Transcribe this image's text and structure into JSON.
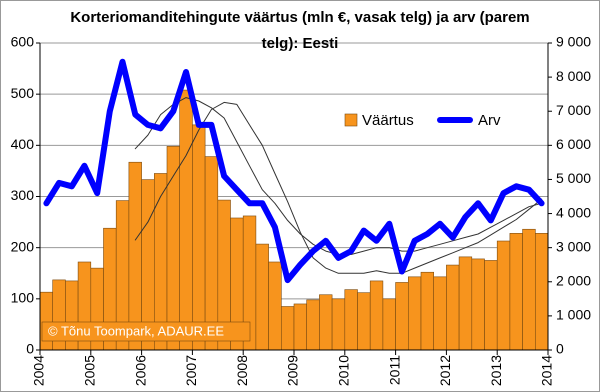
{
  "chart_data": {
    "type": "bar",
    "title": "Korteriomanditehingute väärtus (mln €, vasak telg) ja arv (parem telg): Eesti",
    "annotation": "© Tõnu Toompark, ADAUR.EE",
    "categories": [
      null,
      null,
      null,
      null,
      null,
      null,
      null,
      null,
      null,
      null,
      null,
      null,
      null,
      null,
      null,
      null,
      null,
      null,
      null,
      null,
      null,
      null,
      null,
      null,
      null,
      null,
      null,
      null,
      null,
      null,
      null,
      null,
      null,
      null,
      null,
      null,
      null,
      null,
      null,
      null
    ],
    "xlim": [
      2004,
      2014
    ],
    "xticks": [
      2004,
      2005,
      2006,
      2007,
      2008,
      2009,
      2010,
      2011,
      2012,
      2013,
      2014
    ],
    "ylim": [
      0,
      600
    ],
    "yticks": [
      0,
      100,
      200,
      300,
      400,
      500,
      600
    ],
    "y2lim": [
      0,
      9000
    ],
    "y2ticks": [
      0,
      {
        "value": 1000,
        "label": "1 000"
      },
      {
        "value": 2000,
        "label": "2 000"
      },
      {
        "value": 3000,
        "label": "3 000"
      },
      {
        "value": 4000,
        "label": "4 000"
      },
      {
        "value": 5000,
        "label": "5 000"
      },
      {
        "value": 6000,
        "label": "6 000"
      },
      {
        "value": 7000,
        "label": "7 000"
      },
      {
        "value": 8000,
        "label": "8 000"
      },
      {
        "value": 9000,
        "label": "9 000"
      }
    ],
    "grid": true,
    "series": [
      {
        "name": "Väärtus",
        "type": "bar",
        "color": "#f7941d",
        "values": [
          113,
          137,
          135,
          172,
          160,
          238,
          292,
          367,
          333,
          345,
          398,
          508,
          440,
          378,
          293,
          258,
          262,
          207,
          172,
          85,
          90,
          98,
          108,
          100,
          118,
          112,
          135,
          100,
          132,
          143,
          152,
          143,
          166,
          182,
          178,
          175,
          213,
          228,
          236,
          228
        ]
      },
      {
        "name": "Arv",
        "type": "line",
        "axis": "y2",
        "color": "#0000ff",
        "values": [
          4300,
          4900,
          4800,
          5400,
          4600,
          7000,
          8450,
          6900,
          6600,
          6500,
          7000,
          8150,
          6600,
          6600,
          5100,
          4700,
          4300,
          4300,
          3600,
          2050,
          2500,
          2900,
          3200,
          2700,
          2900,
          3500,
          3200,
          3700,
          2300,
          3200,
          3400,
          3700,
          3300,
          3900,
          4300,
          3800,
          4600,
          4800,
          4700,
          4300
        ]
      },
      {
        "type": "line",
        "color": "#333333",
        "values": [
          null,
          null,
          null,
          null,
          null,
          null,
          null,
          215,
          250,
          300,
          340,
          380,
          430,
          470,
          484,
          480,
          440,
          400,
          345,
          290,
          230,
          180,
          160,
          150,
          150,
          150,
          155,
          150,
          150,
          160,
          170,
          180,
          190,
          200,
          210,
          225,
          240,
          255,
          275,
          295
        ]
      },
      {
        "type": "line",
        "axis": "y2",
        "color": "#333333",
        "values": [
          null,
          null,
          null,
          null,
          null,
          null,
          null,
          5900,
          6300,
          6900,
          7200,
          7400,
          7300,
          7100,
          6800,
          6100,
          5400,
          4700,
          4300,
          3800,
          3400,
          3100,
          2900,
          2800,
          2800,
          2900,
          3000,
          3000,
          2900,
          2900,
          3000,
          3100,
          3200,
          3300,
          3400,
          3600,
          3800,
          4000,
          4200,
          4300
        ]
      }
    ]
  }
}
